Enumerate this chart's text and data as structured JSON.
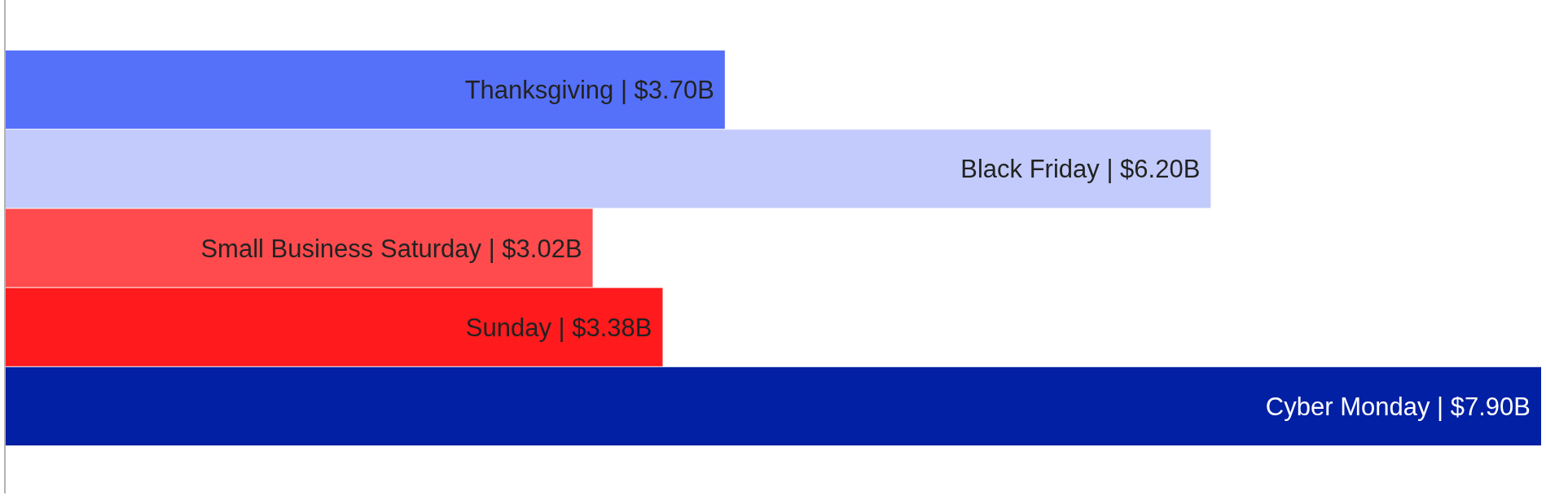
{
  "chart_data": {
    "type": "bar",
    "orientation": "horizontal",
    "categories": [
      "Thanksgiving",
      "Black Friday",
      "Small Business Saturday",
      "Sunday",
      "Cyber Monday"
    ],
    "values": [
      3.7,
      6.2,
      3.02,
      3.38,
      7.9
    ],
    "colors": [
      "#5570f9",
      "#c2cbfb",
      "#ff4b4d",
      "#ff1a1d",
      "#0220a3"
    ],
    "value_labels": [
      "| $3.70B",
      "| $6.20B",
      "| $3.02B",
      "| $3.38B",
      "| $7.90B"
    ]
  }
}
